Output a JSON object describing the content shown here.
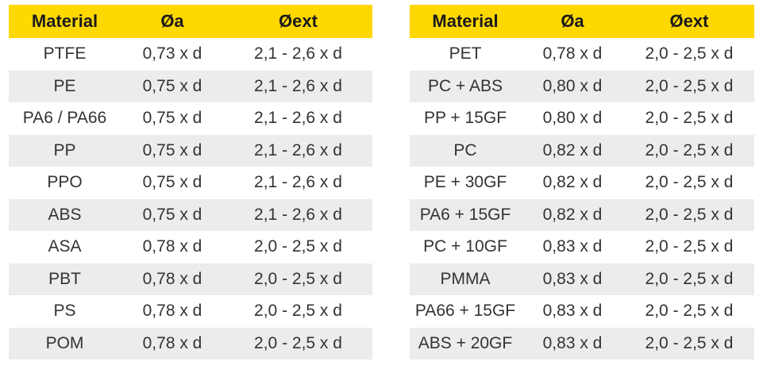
{
  "colors": {
    "header_bg": "#ffd800",
    "stripe_bg": "#ececec"
  },
  "tables": [
    {
      "headers": [
        "Material",
        "Øa",
        "Øext"
      ],
      "rows": [
        [
          "PTFE",
          "0,73 x d",
          "2,1 - 2,6 x d"
        ],
        [
          "PE",
          "0,75 x d",
          "2,1 - 2,6 x d"
        ],
        [
          "PA6 / PA66",
          "0,75 x d",
          "2,1 - 2,6 x d"
        ],
        [
          "PP",
          "0,75 x d",
          "2,1 - 2,6 x d"
        ],
        [
          "PPO",
          "0,75 x d",
          "2,1 - 2,6 x d"
        ],
        [
          "ABS",
          "0,75 x d",
          "2,1 - 2,6 x d"
        ],
        [
          "ASA",
          "0,78 x d",
          "2,0 - 2,5 x d"
        ],
        [
          "PBT",
          "0,78 x d",
          "2,0 - 2,5 x d"
        ],
        [
          "PS",
          "0,78 x d",
          "2,0 - 2,5 x d"
        ],
        [
          "POM",
          "0,78 x d",
          "2,0 - 2,5 x d"
        ]
      ]
    },
    {
      "headers": [
        "Material",
        "Øa",
        "Øext"
      ],
      "rows": [
        [
          "PET",
          "0,78 x d",
          "2,0 - 2,5 x d"
        ],
        [
          "PC + ABS",
          "0,80 x d",
          "2,0 - 2,5 x d"
        ],
        [
          "PP + 15GF",
          "0,80 x d",
          "2,0 - 2,5 x d"
        ],
        [
          "PC",
          "0,82 x d",
          "2,0 - 2,5 x d"
        ],
        [
          "PE + 30GF",
          "0,82 x d",
          "2,0 - 2,5 x d"
        ],
        [
          "PA6 + 15GF",
          "0,82 x d",
          "2,0 - 2,5 x d"
        ],
        [
          "PC + 10GF",
          "0,83 x d",
          "2,0 - 2,5 x d"
        ],
        [
          "PMMA",
          "0,83 x d",
          "2,0 - 2,5 x d"
        ],
        [
          "PA66 + 15GF",
          "0,83 x d",
          "2,0 - 2,5 x d"
        ],
        [
          "ABS + 20GF",
          "0,83 x d",
          "2,0 - 2,5 x d"
        ]
      ]
    }
  ]
}
